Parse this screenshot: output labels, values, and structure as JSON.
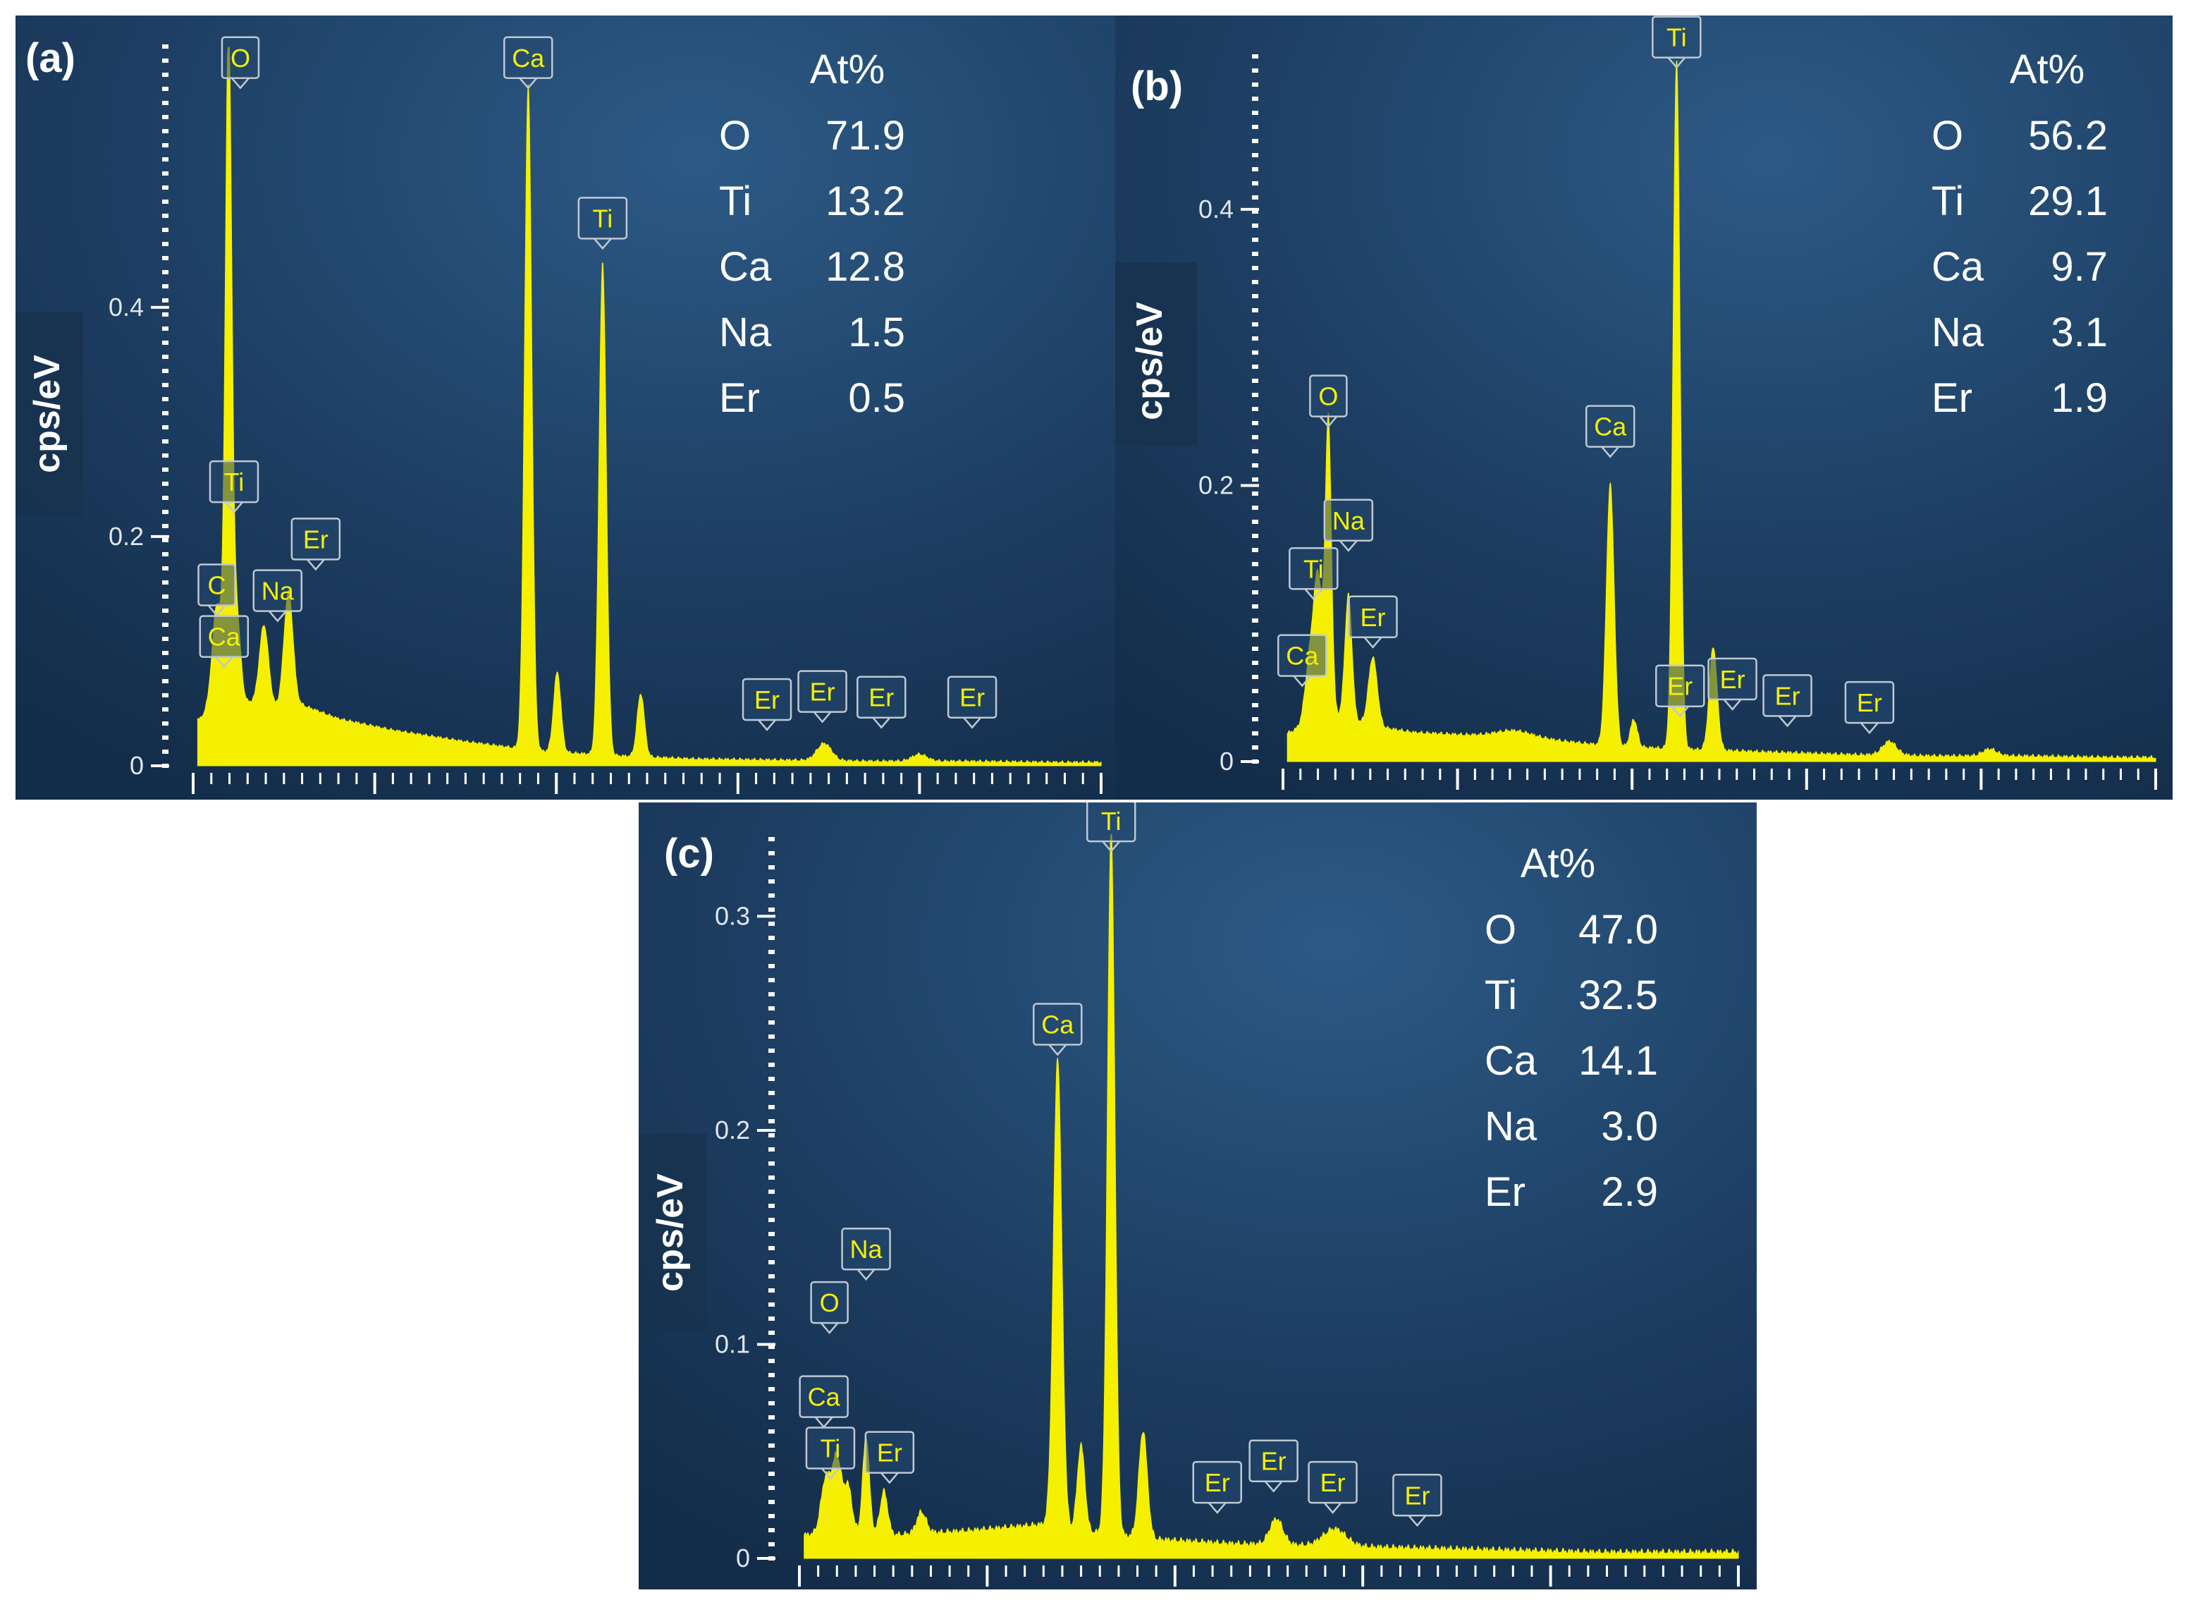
{
  "chart_data": [
    {
      "type": "line",
      "panel_label": "(a)",
      "ylabel": "cps/eV",
      "yticks": [
        0,
        0.2,
        0.4
      ],
      "ylim": [
        0,
        0.63
      ],
      "xlim": [
        0,
        10
      ],
      "table_header": "At%",
      "composition": [
        {
          "element": "O",
          "value": "71.9"
        },
        {
          "element": "Ti",
          "value": "13.2"
        },
        {
          "element": "Ca",
          "value": "12.8"
        },
        {
          "element": "Na",
          "value": "1.5"
        },
        {
          "element": "Er",
          "value": "0.5"
        }
      ],
      "baseline": [
        [
          0.08,
          0.04
        ],
        [
          0.35,
          0.07
        ],
        [
          0.6,
          0.055
        ],
        [
          0.9,
          0.05
        ],
        [
          1.2,
          0.052
        ],
        [
          1.6,
          0.04
        ],
        [
          2.2,
          0.03
        ],
        [
          3.0,
          0.02
        ],
        [
          3.8,
          0.012
        ],
        [
          4.6,
          0.008
        ],
        [
          5.5,
          0.005
        ],
        [
          6.5,
          0.004
        ],
        [
          7.5,
          0.003
        ],
        [
          8.5,
          0.003
        ],
        [
          9.5,
          0.002
        ],
        [
          10,
          0.002
        ]
      ],
      "peaks": [
        {
          "x": 0.26,
          "y": 0.08,
          "w": 0.05
        },
        {
          "x": 0.39,
          "y": 0.58,
          "w": 0.035
        },
        {
          "x": 0.48,
          "y": 0.07,
          "w": 0.04
        },
        {
          "x": 0.78,
          "y": 0.07,
          "w": 0.05
        },
        {
          "x": 1.05,
          "y": 0.1,
          "w": 0.05
        },
        {
          "x": 3.69,
          "y": 0.58,
          "w": 0.04
        },
        {
          "x": 4.01,
          "y": 0.07,
          "w": 0.04
        },
        {
          "x": 4.51,
          "y": 0.43,
          "w": 0.04
        },
        {
          "x": 4.93,
          "y": 0.055,
          "w": 0.04
        },
        {
          "x": 6.95,
          "y": 0.015,
          "w": 0.08
        },
        {
          "x": 8.0,
          "y": 0.006,
          "w": 0.08
        }
      ],
      "markers": [
        {
          "label": "O",
          "x": 0.52,
          "y": 0.6
        },
        {
          "label": "Ca",
          "x": 3.69,
          "y": 0.6
        },
        {
          "label": "Ti",
          "x": 4.51,
          "y": 0.46
        },
        {
          "label": "Ti",
          "x": 0.45,
          "y": 0.23
        },
        {
          "label": "Er",
          "x": 1.35,
          "y": 0.18
        },
        {
          "label": "C",
          "x": 0.26,
          "y": 0.14
        },
        {
          "label": "Na",
          "x": 0.93,
          "y": 0.135
        },
        {
          "label": "Ca",
          "x": 0.34,
          "y": 0.095
        },
        {
          "label": "Er",
          "x": 6.32,
          "y": 0.04
        },
        {
          "label": "Er",
          "x": 6.93,
          "y": 0.047
        },
        {
          "label": "Er",
          "x": 7.58,
          "y": 0.042
        },
        {
          "label": "Er",
          "x": 8.58,
          "y": 0.042
        }
      ]
    },
    {
      "type": "line",
      "panel_label": "(b)",
      "ylabel": "cps/eV",
      "yticks": [
        0,
        0.2,
        0.4
      ],
      "ylim": [
        0,
        0.52
      ],
      "xlim": [
        0,
        10
      ],
      "table_header": "At%",
      "composition": [
        {
          "element": "O",
          "value": "56.2"
        },
        {
          "element": "Ti",
          "value": "29.1"
        },
        {
          "element": "Ca",
          "value": "9.7"
        },
        {
          "element": "Na",
          "value": "3.1"
        },
        {
          "element": "Er",
          "value": "1.9"
        }
      ],
      "baseline": [
        [
          0.08,
          0.02
        ],
        [
          0.5,
          0.035
        ],
        [
          1.0,
          0.025
        ],
        [
          1.5,
          0.02
        ],
        [
          2.2,
          0.018
        ],
        [
          3.0,
          0.015
        ],
        [
          3.8,
          0.01
        ],
        [
          4.6,
          0.008
        ],
        [
          5.5,
          0.006
        ],
        [
          6.5,
          0.004
        ],
        [
          7.5,
          0.003
        ],
        [
          8.5,
          0.003
        ],
        [
          9.5,
          0.002
        ],
        [
          10,
          0.002
        ]
      ],
      "peaks": [
        {
          "x": 0.3,
          "y": 0.04,
          "w": 0.05
        },
        {
          "x": 0.4,
          "y": 0.1,
          "w": 0.05
        },
        {
          "x": 0.52,
          "y": 0.21,
          "w": 0.035
        },
        {
          "x": 0.75,
          "y": 0.09,
          "w": 0.04
        },
        {
          "x": 1.03,
          "y": 0.05,
          "w": 0.05
        },
        {
          "x": 2.65,
          "y": 0.005,
          "w": 0.2
        },
        {
          "x": 3.75,
          "y": 0.19,
          "w": 0.045
        },
        {
          "x": 4.02,
          "y": 0.02,
          "w": 0.04
        },
        {
          "x": 4.51,
          "y": 0.5,
          "w": 0.04
        },
        {
          "x": 4.93,
          "y": 0.075,
          "w": 0.045
        },
        {
          "x": 6.95,
          "y": 0.01,
          "w": 0.08
        },
        {
          "x": 8.1,
          "y": 0.005,
          "w": 0.08
        }
      ],
      "markers": [
        {
          "label": "Ti",
          "x": 4.51,
          "y": 0.51
        },
        {
          "label": "O",
          "x": 0.52,
          "y": 0.25
        },
        {
          "label": "Ca",
          "x": 3.75,
          "y": 0.228
        },
        {
          "label": "Na",
          "x": 0.75,
          "y": 0.16
        },
        {
          "label": "Ti",
          "x": 0.35,
          "y": 0.125
        },
        {
          "label": "Er",
          "x": 1.03,
          "y": 0.09
        },
        {
          "label": "Ca",
          "x": 0.22,
          "y": 0.062
        },
        {
          "label": "Er",
          "x": 4.55,
          "y": 0.04
        },
        {
          "label": "Er",
          "x": 5.15,
          "y": 0.045
        },
        {
          "label": "Er",
          "x": 5.78,
          "y": 0.033
        },
        {
          "label": "Er",
          "x": 6.72,
          "y": 0.028
        }
      ]
    },
    {
      "type": "line",
      "panel_label": "(c)",
      "ylabel": "cps/eV",
      "yticks": [
        0,
        0.1,
        0.2,
        0.3
      ],
      "ylim": [
        0,
        0.34
      ],
      "xlim": [
        0,
        10
      ],
      "table_header": "At%",
      "composition": [
        {
          "element": "O",
          "value": "47.0"
        },
        {
          "element": "Ti",
          "value": "32.5"
        },
        {
          "element": "Ca",
          "value": "14.1"
        },
        {
          "element": "Na",
          "value": "3.0"
        },
        {
          "element": "Er",
          "value": "2.9"
        }
      ],
      "baseline": [
        [
          0.08,
          0.01
        ],
        [
          0.5,
          0.012
        ],
        [
          1.0,
          0.01
        ],
        [
          1.8,
          0.012
        ],
        [
          2.6,
          0.015
        ],
        [
          3.0,
          0.012
        ],
        [
          3.8,
          0.008
        ],
        [
          4.6,
          0.006
        ],
        [
          5.5,
          0.005
        ],
        [
          6.5,
          0.004
        ],
        [
          7.5,
          0.003
        ],
        [
          8.5,
          0.002
        ],
        [
          9.5,
          0.002
        ],
        [
          10,
          0.002
        ]
      ],
      "peaks": [
        {
          "x": 0.28,
          "y": 0.025,
          "w": 0.05
        },
        {
          "x": 0.4,
          "y": 0.035,
          "w": 0.05
        },
        {
          "x": 0.52,
          "y": 0.02,
          "w": 0.04
        },
        {
          "x": 0.71,
          "y": 0.045,
          "w": 0.035
        },
        {
          "x": 0.9,
          "y": 0.02,
          "w": 0.04
        },
        {
          "x": 1.3,
          "y": 0.01,
          "w": 0.05
        },
        {
          "x": 2.75,
          "y": 0.22,
          "w": 0.045
        },
        {
          "x": 3.0,
          "y": 0.04,
          "w": 0.04
        },
        {
          "x": 3.32,
          "y": 0.33,
          "w": 0.04
        },
        {
          "x": 3.66,
          "y": 0.05,
          "w": 0.045
        },
        {
          "x": 5.08,
          "y": 0.012,
          "w": 0.07
        },
        {
          "x": 5.7,
          "y": 0.008,
          "w": 0.12
        }
      ],
      "markers": [
        {
          "label": "Ti",
          "x": 3.32,
          "y": 0.335
        },
        {
          "label": "Ca",
          "x": 2.75,
          "y": 0.24
        },
        {
          "label": "Na",
          "x": 0.71,
          "y": 0.135
        },
        {
          "label": "O",
          "x": 0.32,
          "y": 0.11
        },
        {
          "label": "Ca",
          "x": 0.26,
          "y": 0.066
        },
        {
          "label": "Ti",
          "x": 0.33,
          "y": 0.042
        },
        {
          "label": "Er",
          "x": 0.96,
          "y": 0.04
        },
        {
          "label": "Er",
          "x": 4.45,
          "y": 0.026
        },
        {
          "label": "Er",
          "x": 5.05,
          "y": 0.036
        },
        {
          "label": "Er",
          "x": 5.68,
          "y": 0.026
        },
        {
          "label": "Er",
          "x": 6.58,
          "y": 0.02
        }
      ]
    }
  ]
}
